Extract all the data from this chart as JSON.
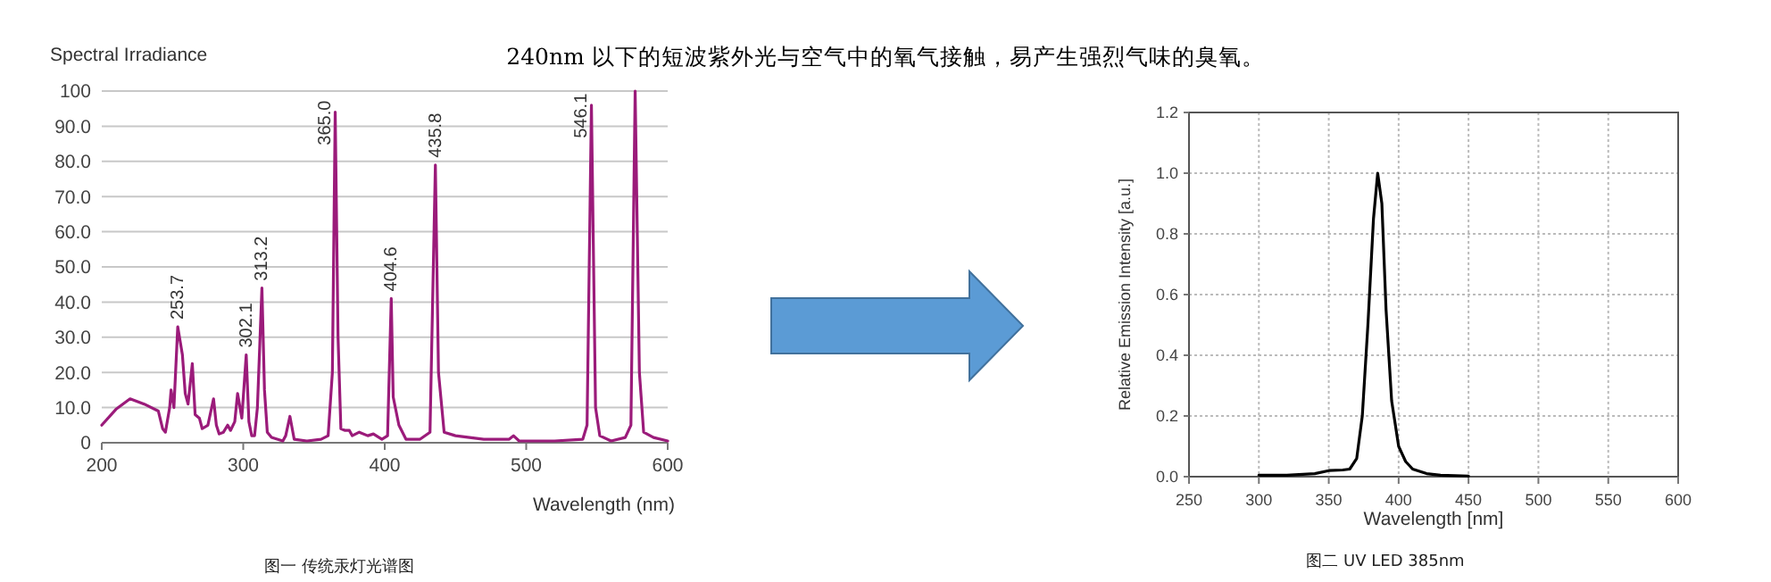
{
  "chart_data": [
    {
      "type": "line",
      "title": "240nm 以下的短波紫外光与空气中的氧气接触，易产生强烈气味的臭氧。",
      "ylabel": "Spectral Irradiance",
      "xlabel": "Wavelength (nm)",
      "annotations": [
        "图一 传统汞灯光谱图",
        {
          "text": "253.7",
          "x": 253.7,
          "y": 33
        },
        {
          "text": "302.1",
          "x": 302.1,
          "y": 25
        },
        {
          "text": "313.2",
          "x": 313.2,
          "y": 44
        },
        {
          "text": "365.0",
          "x": 365,
          "y": 94
        },
        {
          "text": "404.6",
          "x": 404.6,
          "y": 41
        },
        {
          "text": "435.8",
          "x": 435.8,
          "y": 79
        },
        {
          "text": "546.1",
          "x": 546.1,
          "y": 96
        }
      ],
      "xlim": [
        200,
        600
      ],
      "xticks": [
        200,
        300,
        400,
        500,
        600
      ],
      "ylim": [
        0,
        100
      ],
      "yticks": [
        0,
        {
          "value": 10,
          "label": "10.0"
        },
        {
          "value": 20,
          "label": "20.0"
        },
        {
          "value": 30,
          "label": "30.0"
        },
        {
          "value": 40,
          "label": "40.0"
        },
        {
          "value": 50,
          "label": "50.0"
        },
        {
          "value": 60,
          "label": "60.0"
        },
        {
          "value": 70,
          "label": "70.0"
        },
        {
          "value": 80,
          "label": "80.0"
        },
        {
          "value": 90,
          "label": "90.0"
        },
        100
      ],
      "grid": "y",
      "series": [
        {
          "color": "#9b1b7a",
          "x": [
            200,
            210,
            220,
            230,
            240,
            243,
            245,
            248,
            249,
            251,
            253.7,
            257,
            259,
            261,
            264,
            266,
            269,
            271,
            275,
            279,
            281,
            283,
            286,
            289,
            291,
            294,
            296,
            299,
            302.1,
            304,
            306,
            308,
            310,
            313.2,
            315,
            317,
            320,
            328,
            330,
            333,
            336,
            345,
            355,
            360,
            363,
            365,
            367,
            369,
            372,
            375,
            377,
            382,
            388,
            392,
            398,
            402,
            404.6,
            406,
            410,
            415,
            425,
            432,
            435.8,
            438,
            442,
            450,
            470,
            488,
            491,
            495,
            520,
            540,
            543,
            546.1,
            549,
            552,
            560,
            570,
            574,
            577,
            580,
            583,
            590,
            600
          ],
          "values": [
            5,
            9.5,
            12.5,
            11,
            9,
            4,
            3,
            10,
            15,
            10,
            33,
            25,
            14,
            11,
            22.5,
            8,
            7,
            4,
            5,
            12.5,
            5,
            2.5,
            3,
            5,
            3.5,
            6,
            14,
            7,
            25,
            6,
            2,
            2,
            10,
            44,
            15,
            3,
            1.5,
            0.5,
            2,
            7.5,
            1,
            0.5,
            1,
            2,
            20,
            94,
            30,
            4,
            3.5,
            3.5,
            2,
            3,
            2,
            2.5,
            1,
            2,
            41,
            13,
            5,
            1,
            1,
            3,
            79,
            20,
            3,
            2,
            1,
            1,
            2,
            0.5,
            0.5,
            1,
            5,
            96,
            10,
            2,
            0.5,
            1.5,
            5,
            100,
            20,
            3,
            1.5,
            0.5
          ]
        }
      ]
    },
    {
      "type": "line",
      "ylabel": "Relative Emission Intensity [a.u.]",
      "xlabel": "Wavelength [nm]",
      "annotations": [
        "图二 UV LED 385nm"
      ],
      "xlim": [
        250,
        600
      ],
      "xticks": [
        250,
        300,
        350,
        400,
        450,
        500,
        550,
        600
      ],
      "ylim": [
        0,
        1.2
      ],
      "yticks": [
        {
          "value": 0,
          "label": "0.0"
        },
        0.2,
        0.4,
        0.6,
        0.8,
        {
          "value": 1,
          "label": "1.0"
        },
        1.2
      ],
      "grid": true,
      "series": [
        {
          "color": "#000000",
          "x": [
            300,
            320,
            340,
            350,
            360,
            365,
            370,
            374,
            378,
            382,
            385,
            388,
            391,
            395,
            400,
            405,
            410,
            420,
            430,
            450
          ],
          "values": [
            0.005,
            0.005,
            0.01,
            0.02,
            0.022,
            0.025,
            0.06,
            0.2,
            0.5,
            0.85,
            1.0,
            0.9,
            0.55,
            0.25,
            0.1,
            0.05,
            0.025,
            0.01,
            0.005,
            0.002
          ]
        }
      ]
    }
  ]
}
